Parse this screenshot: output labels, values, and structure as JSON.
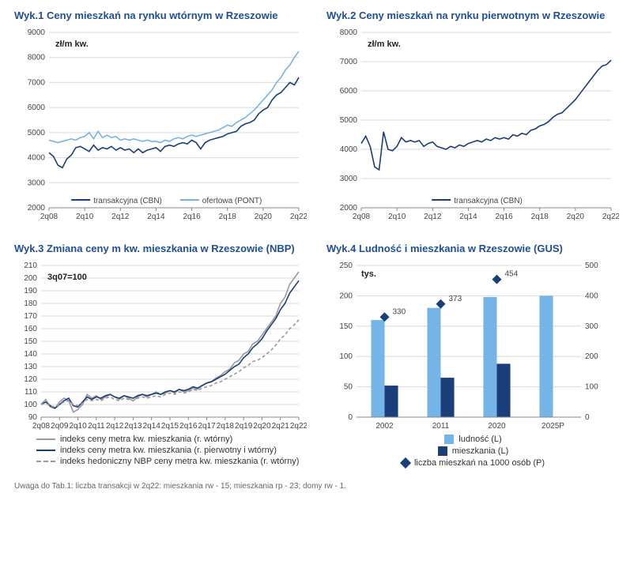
{
  "colors": {
    "title": "#1f4e9b",
    "grid": "#d9d9d9",
    "axis_text": "#444444",
    "dark_blue": "#1a3e7a",
    "light_blue": "#74b4e6",
    "gray": "#9a9a9a",
    "bg": "#ffffff"
  },
  "charts": {
    "c1": {
      "title": "Wyk.1 Ceny mieszkań na rynku wtórnym w Rzeszowie",
      "ylabel": "zł/m kw.",
      "ylim": [
        2000,
        9000
      ],
      "ytick_step": 1000,
      "x_categories": [
        "2q08",
        "2q10",
        "2q12",
        "2q14",
        "2q16",
        "2q18",
        "2q20",
        "2q22"
      ],
      "series": [
        {
          "name": "transakcyjna (CBN)",
          "color": "#1a3e7a",
          "dash": "none",
          "values": [
            4200,
            4050,
            3700,
            3600,
            3950,
            4100,
            4400,
            4450,
            4350,
            4250,
            4500,
            4300,
            4400,
            4350,
            4450,
            4300,
            4400,
            4300,
            4350,
            4200,
            4350,
            4200,
            4300,
            4350,
            4400,
            4250,
            4450,
            4500,
            4450,
            4550,
            4600,
            4550,
            4700,
            4600,
            4350,
            4600,
            4700,
            4750,
            4800,
            4850,
            4950,
            5000,
            5050,
            5250,
            5350,
            5400,
            5500,
            5750,
            5900,
            6000,
            6300,
            6500,
            6600,
            6800,
            7000,
            6900,
            7200
          ]
        },
        {
          "name": "ofertowa (PONT)",
          "color": "#74b4e6",
          "dash": "none",
          "values": [
            4700,
            4650,
            4600,
            4650,
            4700,
            4750,
            4700,
            4800,
            4850,
            5000,
            4750,
            5050,
            4800,
            4900,
            4800,
            4850,
            4700,
            4750,
            4700,
            4750,
            4700,
            4650,
            4700,
            4650,
            4650,
            4600,
            4700,
            4650,
            4750,
            4800,
            4750,
            4850,
            4900,
            4850,
            4900,
            4950,
            5000,
            5050,
            5100,
            5200,
            5300,
            5250,
            5400,
            5500,
            5600,
            5750,
            5900,
            6100,
            6300,
            6500,
            6700,
            7000,
            7200,
            7500,
            7700,
            8000,
            8250
          ]
        }
      ],
      "legend_inside": true,
      "legend_items": [
        {
          "label": "transakcyjna (CBN)",
          "color": "#1a3e7a",
          "dash": "none"
        },
        {
          "label": "ofertowa (PONT)",
          "color": "#74b4e6",
          "dash": "none"
        }
      ]
    },
    "c2": {
      "title": "Wyk.2 Ceny mieszkań na rynku pierwotnym w Rzeszowie",
      "ylabel": "zł/m kw.",
      "ylim": [
        2000,
        8000
      ],
      "ytick_step": 1000,
      "x_categories": [
        "2q08",
        "2q10",
        "2q12",
        "2q14",
        "2q16",
        "2q18",
        "2q20",
        "2q22"
      ],
      "series": [
        {
          "name": "transakcyjna (CBN)",
          "color": "#1a3e7a",
          "dash": "none",
          "values": [
            4200,
            4450,
            4100,
            3400,
            3300,
            4600,
            4000,
            3950,
            4100,
            4400,
            4250,
            4300,
            4250,
            4300,
            4100,
            4200,
            4250,
            4100,
            4050,
            4000,
            4100,
            4050,
            4150,
            4100,
            4200,
            4250,
            4300,
            4250,
            4350,
            4300,
            4400,
            4350,
            4400,
            4350,
            4500,
            4450,
            4550,
            4500,
            4650,
            4700,
            4800,
            4850,
            4950,
            5100,
            5200,
            5250,
            5400,
            5550,
            5700,
            5900,
            6100,
            6300,
            6500,
            6700,
            6850,
            6900,
            7050
          ]
        }
      ],
      "legend_inside": true,
      "legend_items": [
        {
          "label": "transakcyjna (CBN)",
          "color": "#1a3e7a",
          "dash": "none"
        }
      ]
    },
    "c3": {
      "title": "Wyk.3 Zmiana ceny m kw. mieszkania w Rzeszowie (NBP)",
      "ylabel": "3q07=100",
      "ylim": [
        90,
        210
      ],
      "ytick_step": 10,
      "x_categories": [
        "2q08",
        "2q09",
        "2q10",
        "2q11",
        "2q12",
        "2q13",
        "2q14",
        "2q15",
        "2q16",
        "2q17",
        "2q18",
        "2q19",
        "2q20",
        "2q21",
        "2q22"
      ],
      "series": [
        {
          "name": "indeks ceny metra kw. mieszkania (r. wtórny)",
          "color": "#9a9a9a",
          "dash": "none",
          "values": [
            100,
            104,
            98,
            97,
            102,
            105,
            103,
            94,
            96,
            100,
            108,
            105,
            107,
            104,
            106,
            108,
            106,
            104,
            107,
            105,
            103,
            106,
            108,
            106,
            108,
            110,
            108,
            109,
            111,
            109,
            112,
            110,
            111,
            113,
            112,
            115,
            117,
            118,
            121,
            123,
            126,
            128,
            133,
            135,
            140,
            142,
            148,
            150,
            155,
            160,
            165,
            170,
            180,
            185,
            195,
            200,
            205
          ]
        },
        {
          "name": "indeks ceny metra kw. mieszkania (r. pierwotny i wtórny)",
          "color": "#1a3e7a",
          "dash": "none",
          "values": [
            100,
            102,
            99,
            97,
            100,
            103,
            105,
            99,
            98,
            102,
            106,
            104,
            106,
            105,
            107,
            108,
            106,
            105,
            107,
            106,
            105,
            107,
            108,
            107,
            108,
            109,
            108,
            110,
            111,
            110,
            112,
            111,
            112,
            114,
            113,
            115,
            117,
            118,
            120,
            122,
            124,
            127,
            130,
            132,
            137,
            140,
            145,
            148,
            152,
            158,
            163,
            168,
            175,
            180,
            188,
            193,
            198
          ]
        },
        {
          "name": "indeks hedoniczny NBP ceny metra kw. mieszkania (r. wtórny)",
          "color": "#9a9a9a",
          "dash": "4,3",
          "values": [
            100,
            101,
            99,
            98,
            100,
            102,
            103,
            100,
            99,
            101,
            104,
            103,
            104,
            103,
            105,
            106,
            104,
            103,
            105,
            104,
            103,
            105,
            106,
            105,
            106,
            107,
            106,
            108,
            109,
            108,
            110,
            109,
            110,
            112,
            111,
            113,
            114,
            115,
            117,
            118,
            120,
            122,
            124,
            126,
            129,
            131,
            134,
            135,
            137,
            140,
            143,
            147,
            152,
            155,
            160,
            163,
            167
          ]
        }
      ],
      "legend_inside": false,
      "legend_items": [
        {
          "label": "indeks ceny metra kw. mieszkania (r. wtórny)",
          "color": "#9a9a9a",
          "dash": "none"
        },
        {
          "label": "indeks ceny metra kw. mieszkania (r. pierwotny i wtórny)",
          "color": "#1a3e7a",
          "dash": "none"
        },
        {
          "label": "indeks hedoniczny NBP ceny metra kw. mieszkania (r. wtórny)",
          "color": "#9a9a9a",
          "dash": "4,3"
        }
      ]
    },
    "c4": {
      "title": "Wyk.4 Ludność i mieszkania w Rzeszowie (GUS)",
      "ylabel_left": "tys.",
      "ylim_left": [
        0,
        250
      ],
      "ytick_left_step": 50,
      "ylim_right": [
        0,
        500
      ],
      "ytick_right_step": 100,
      "x_categories": [
        "2002",
        "2011",
        "2020",
        "2025P"
      ],
      "bars": [
        {
          "name": "ludność (L)",
          "color": "#74b4e6",
          "values": [
            160,
            180,
            198,
            200
          ]
        },
        {
          "name": "mieszkania (L)",
          "color": "#1a3e7a",
          "values": [
            52,
            65,
            88,
            null
          ]
        }
      ],
      "diamonds": {
        "name": "liczba mieszkań na 1000 osób (P)",
        "color": "#1a3e7a",
        "values": [
          330,
          373,
          454,
          null
        ]
      },
      "legend_items": [
        {
          "label": "ludność (L)",
          "kind": "bar",
          "color": "#74b4e6"
        },
        {
          "label": "mieszkania (L)",
          "kind": "bar",
          "color": "#1a3e7a"
        },
        {
          "label": "liczba mieszkań na 1000 osób (P)",
          "kind": "diamond",
          "color": "#1a3e7a"
        }
      ]
    }
  },
  "footnote": "Uwaga do Tab.1: liczba transakcji w 2q22: mieszkania rw - 15; mieszkania rp - 23; domy rw - 1."
}
